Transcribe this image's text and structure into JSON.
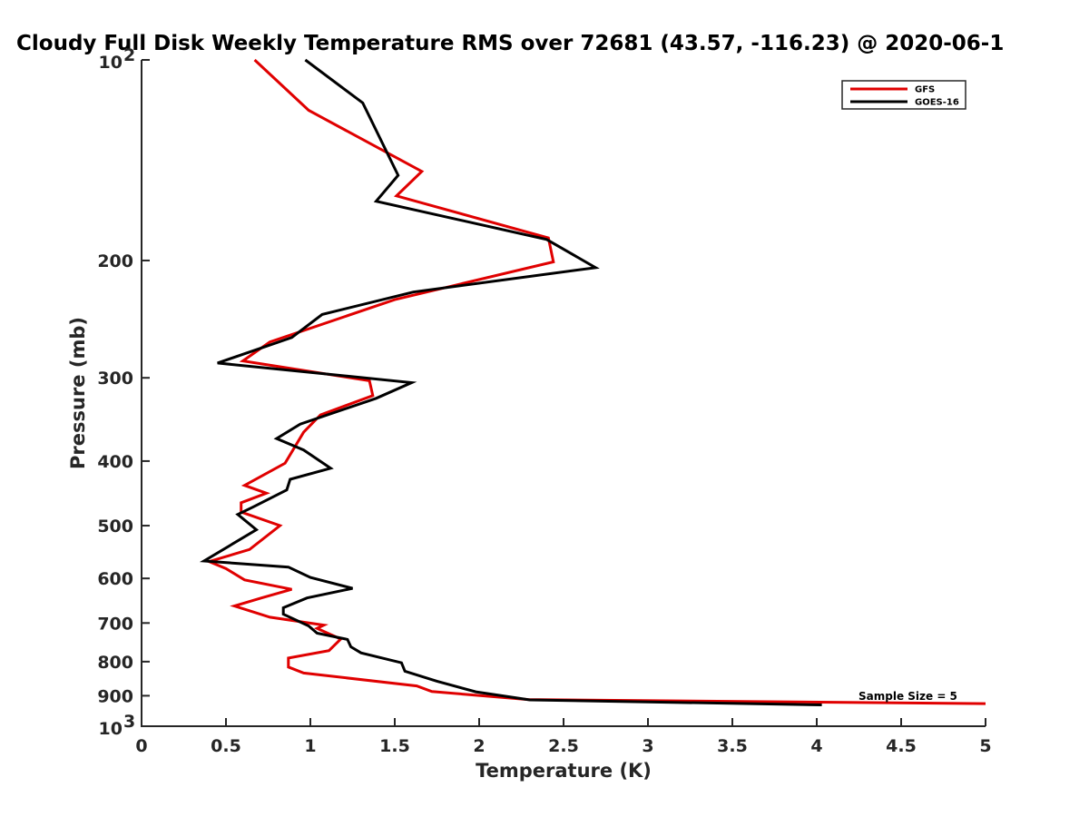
{
  "chart_data": {
    "type": "line",
    "title": "Cloudy Full Disk Weekly Temperature RMS over 72681 (43.57, -116.23) @ 2020-06-1",
    "xlabel": "Temperature (K)",
    "ylabel": "Pressure (mb)",
    "xlim": [
      0,
      5
    ],
    "ylim": [
      100,
      1000
    ],
    "y_scale": "log",
    "y_reversed": true,
    "x_ticks": [
      "0",
      "0.5",
      "1",
      "1.5",
      "2",
      "2.5",
      "3",
      "3.5",
      "4",
      "4.5",
      "5"
    ],
    "y_ticks": [
      {
        "value": 100,
        "base": "10",
        "exp": "2"
      },
      {
        "value": 200,
        "label": "200"
      },
      {
        "value": 300,
        "label": "300"
      },
      {
        "value": 400,
        "label": "400"
      },
      {
        "value": 500,
        "label": "500"
      },
      {
        "value": 600,
        "label": "600"
      },
      {
        "value": 700,
        "label": "700"
      },
      {
        "value": 800,
        "label": "800"
      },
      {
        "value": 900,
        "label": "900"
      },
      {
        "value": 1000,
        "base": "10",
        "exp": "3"
      }
    ],
    "legend_position": "top-right",
    "annotation": "Sample Size = 5",
    "series": [
      {
        "name": "GFS",
        "color": "#e00000",
        "points": [
          [
            0.67,
            100
          ],
          [
            0.99,
            119
          ],
          [
            1.66,
            147
          ],
          [
            1.51,
            160
          ],
          [
            2.41,
            185
          ],
          [
            2.44,
            201
          ],
          [
            1.5,
            229
          ],
          [
            0.76,
            265
          ],
          [
            0.6,
            283
          ],
          [
            1.35,
            303
          ],
          [
            1.37,
            319
          ],
          [
            1.06,
            341
          ],
          [
            0.96,
            362
          ],
          [
            0.85,
            403
          ],
          [
            0.61,
            435
          ],
          [
            0.74,
            447
          ],
          [
            0.59,
            462
          ],
          [
            0.59,
            477
          ],
          [
            0.82,
            500
          ],
          [
            0.64,
            543
          ],
          [
            0.4,
            566
          ],
          [
            0.5,
            580
          ],
          [
            0.61,
            603
          ],
          [
            0.89,
            623
          ],
          [
            0.71,
            642
          ],
          [
            0.55,
            660
          ],
          [
            0.76,
            686
          ],
          [
            1.08,
            705
          ],
          [
            1.04,
            713
          ],
          [
            1.18,
            740
          ],
          [
            1.11,
            770
          ],
          [
            0.87,
            790
          ],
          [
            0.87,
            815
          ],
          [
            0.96,
            832
          ],
          [
            1.63,
            870
          ],
          [
            1.72,
            887
          ],
          [
            2.29,
            912
          ],
          [
            5.0,
            925
          ]
        ]
      },
      {
        "name": "GOES-16",
        "color": "#000000",
        "points": [
          [
            0.97,
            100
          ],
          [
            1.31,
            116
          ],
          [
            1.52,
            149
          ],
          [
            1.39,
            163
          ],
          [
            2.4,
            186
          ],
          [
            2.69,
            205
          ],
          [
            1.61,
            223
          ],
          [
            1.07,
            241
          ],
          [
            0.89,
            261
          ],
          [
            0.45,
            285
          ],
          [
            1.6,
            305
          ],
          [
            1.39,
            322
          ],
          [
            0.94,
            352
          ],
          [
            0.8,
            370
          ],
          [
            0.96,
            385
          ],
          [
            1.12,
            410
          ],
          [
            0.88,
            426
          ],
          [
            0.86,
            442
          ],
          [
            0.66,
            469
          ],
          [
            0.57,
            481
          ],
          [
            0.68,
            507
          ],
          [
            0.37,
            565
          ],
          [
            0.87,
            577
          ],
          [
            1.0,
            598
          ],
          [
            1.25,
            621
          ],
          [
            0.98,
            642
          ],
          [
            0.84,
            664
          ],
          [
            0.84,
            679
          ],
          [
            0.99,
            707
          ],
          [
            1.04,
            725
          ],
          [
            1.22,
            741
          ],
          [
            1.24,
            760
          ],
          [
            1.3,
            776
          ],
          [
            1.54,
            803
          ],
          [
            1.56,
            827
          ],
          [
            1.75,
            856
          ],
          [
            1.98,
            888
          ],
          [
            2.3,
            913
          ],
          [
            4.03,
            929
          ]
        ]
      }
    ]
  }
}
